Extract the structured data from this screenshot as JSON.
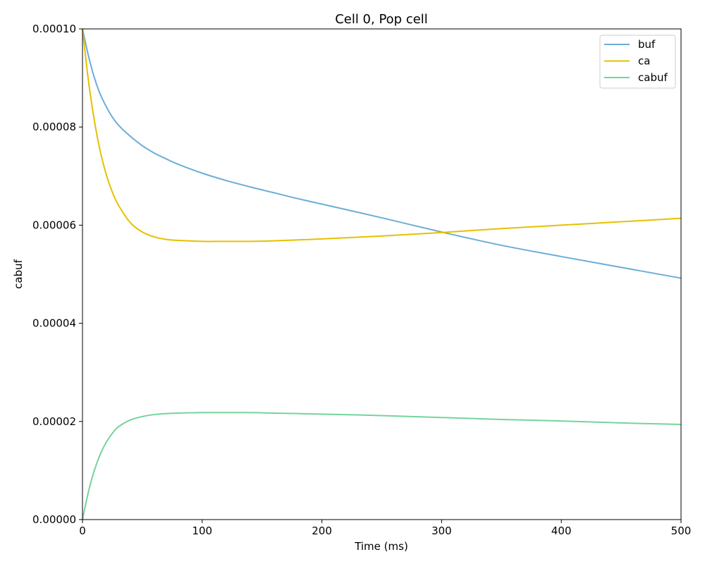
{
  "chart_data": {
    "type": "line",
    "title": "Cell 0, Pop cell",
    "xlabel": "Time (ms)",
    "ylabel": "cabuf",
    "xlim": [
      0,
      500
    ],
    "ylim": [
      0,
      0.0001
    ],
    "x_ticks": [
      0,
      100,
      200,
      300,
      400,
      500
    ],
    "x_tick_labels": [
      "0",
      "100",
      "200",
      "300",
      "400",
      "500"
    ],
    "y_ticks": [
      0,
      2e-05,
      4e-05,
      6e-05,
      8e-05,
      0.0001
    ],
    "y_tick_labels": [
      "0.00000",
      "0.00002",
      "0.00004",
      "0.00006",
      "0.00008",
      "0.00010"
    ],
    "grid": false,
    "legend_position": "top-right",
    "x": [
      0,
      5,
      10,
      15,
      20,
      25,
      30,
      40,
      50,
      60,
      70,
      80,
      100,
      120,
      140,
      160,
      180,
      200,
      250,
      300,
      350,
      400,
      450,
      500
    ],
    "series": [
      {
        "name": "buf",
        "color": "#6baed6",
        "values": [
          0.0001,
          9.45e-05,
          9e-05,
          8.66e-05,
          8.41e-05,
          8.2e-05,
          8.04e-05,
          7.81e-05,
          7.62e-05,
          7.47e-05,
          7.35e-05,
          7.24e-05,
          7.06e-05,
          6.91e-05,
          6.78e-05,
          6.66e-05,
          6.54e-05,
          6.43e-05,
          6.15e-05,
          5.86e-05,
          5.59e-05,
          5.36e-05,
          5.14e-05,
          4.92e-05
        ]
      },
      {
        "name": "ca",
        "color": "#e6c000",
        "values": [
          0.0001,
          8.94e-05,
          8.12e-05,
          7.49e-05,
          7.02e-05,
          6.67e-05,
          6.41e-05,
          6.05e-05,
          5.86e-05,
          5.76e-05,
          5.71e-05,
          5.69e-05,
          5.67e-05,
          5.67e-05,
          5.67e-05,
          5.68e-05,
          5.7e-05,
          5.72e-05,
          5.78e-05,
          5.85e-05,
          5.93e-05,
          6e-05,
          6.07e-05,
          6.14e-05
        ]
      },
      {
        "name": "cabuf",
        "color": "#74d49b",
        "values": [
          0,
          5.7e-06,
          1.01e-05,
          1.34e-05,
          1.58e-05,
          1.76e-05,
          1.89e-05,
          2.03e-05,
          2.1e-05,
          2.14e-05,
          2.16e-05,
          2.17e-05,
          2.18e-05,
          2.18e-05,
          2.18e-05,
          2.17e-05,
          2.16e-05,
          2.15e-05,
          2.12e-05,
          2.08e-05,
          2.04e-05,
          2.01e-05,
          1.97e-05,
          1.94e-05
        ]
      }
    ]
  }
}
